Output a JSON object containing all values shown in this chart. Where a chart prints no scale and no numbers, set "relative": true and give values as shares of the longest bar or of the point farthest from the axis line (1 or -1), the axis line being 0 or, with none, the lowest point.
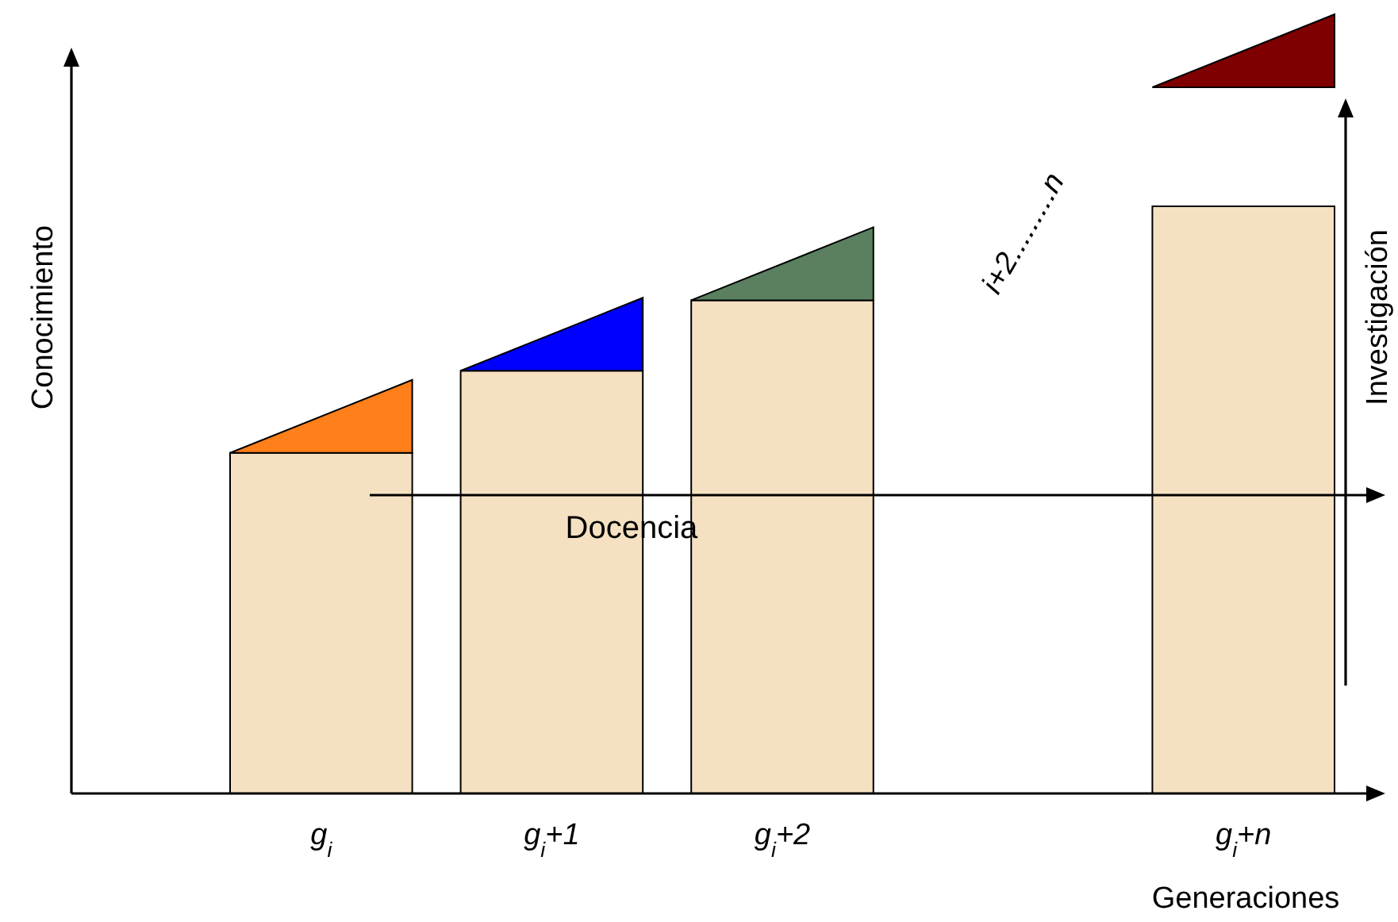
{
  "chart_data": {
    "type": "bar",
    "relative": true,
    "xlabel": "Generaciones",
    "ylabel": "Conocimiento",
    "categories": [
      "g$_{i}$",
      "g$_{i}$+1",
      "g$_{i}$+2",
      null,
      "g$_{i}$+n"
    ],
    "values": [
      0.58,
      0.72,
      0.84,
      null,
      1
    ],
    "color": "#f5e1c1",
    "annotations": [
      "Docencia",
      "Investigación",
      "i+2.........n"
    ]
  }
}
